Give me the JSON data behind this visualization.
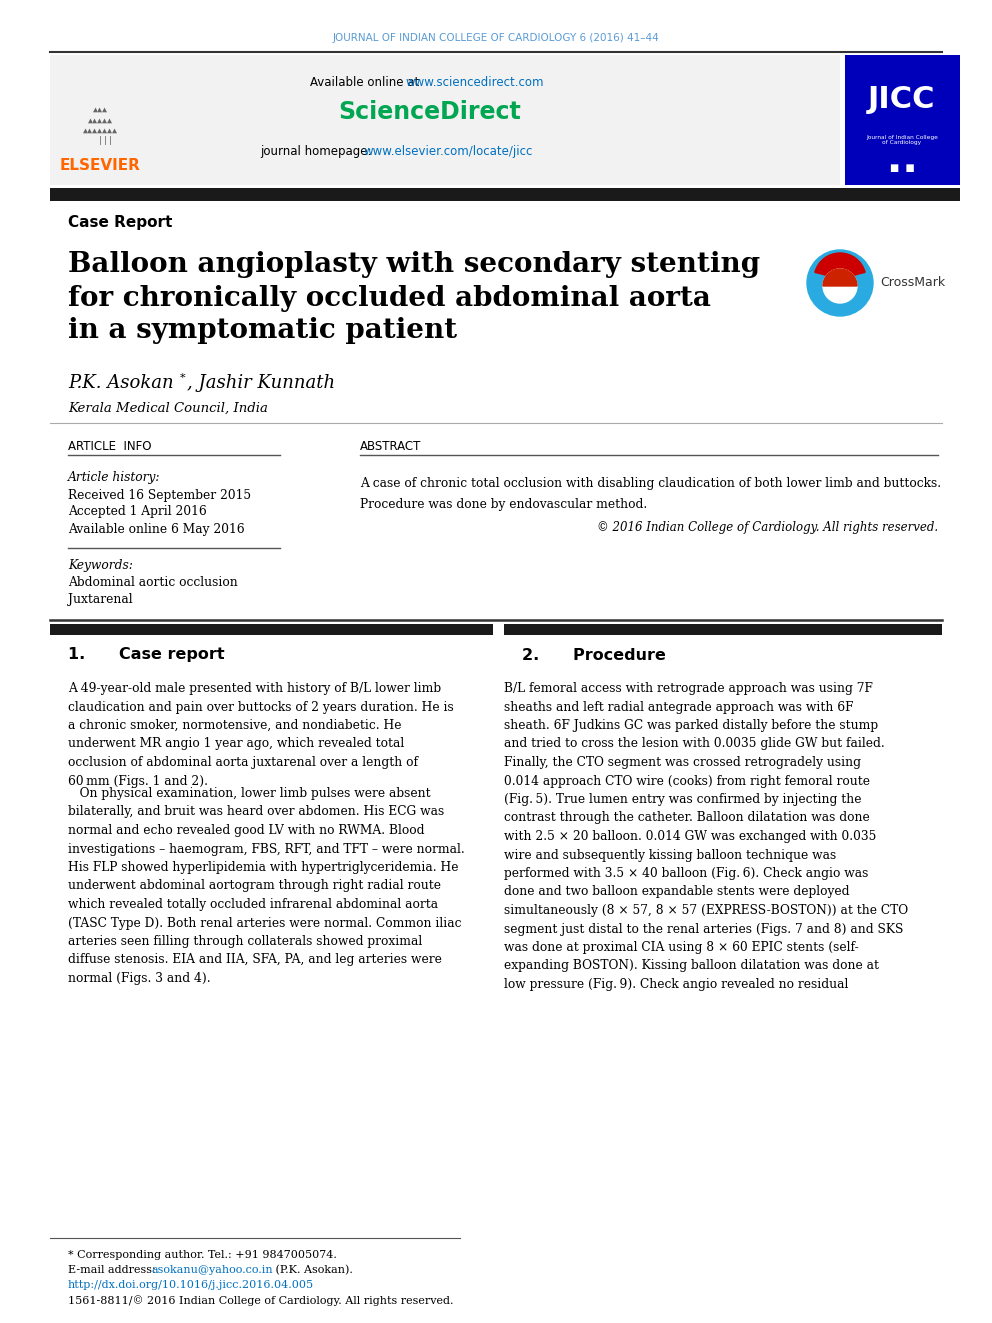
{
  "journal_header": "JOURNAL OF INDIAN COLLEGE OF CARDIOLOGY 6 (2016) 41–44",
  "journal_header_color": "#5B9BD5",
  "available_online_text": "Available online at ",
  "sciencedirect_url": "www.sciencedirect.com",
  "sciencedirect_logo": "ScienceDirect",
  "sciencedirect_logo_color": "#00A651",
  "journal_homepage_text": "journal homepage: ",
  "journal_homepage_url": "www.elsevier.com/locate/jicc",
  "url_color": "#0070C0",
  "header_bg": "#F2F2F2",
  "jicc_bg": "#0000BB",
  "jicc_text": "JICC",
  "black_bar_color": "#1A1A1A",
  "case_report_label": "Case Report",
  "title_line1": "Balloon angioplasty with secondary stenting",
  "title_line2": "for chronically occluded abdominal aorta",
  "title_line3": "in a symptomatic patient",
  "authors_part1": "P.K. Asokan",
  "authors_part2": ", Jashir Kunnath",
  "institution": "Kerala Medical Council, India",
  "article_info_header": "ARTICLE  INFO",
  "abstract_header": "ABSTRACT",
  "article_history_label": "Article history:",
  "received": "Received 16 September 2015",
  "accepted": "Accepted 1 April 2016",
  "available_online": "Available online 6 May 2016",
  "keywords_label": "Keywords:",
  "keyword1": "Abdominal aortic occlusion",
  "keyword2": "Juxtarenal",
  "abstract_text1": "A case of chronic total occlusion with disabling claudication of both lower limb and buttocks.",
  "abstract_text2": "Procedure was done by endovascular method.",
  "copyright_text": "© 2016 Indian College of Cardiology. All rights reserved.",
  "section1_num": "1.",
  "section1_title": "Case report",
  "section2_num": "2.",
  "section2_title": "Procedure",
  "footnote1": "* Corresponding author. Tel.: +91 9847005074.",
  "footnote2_pre": "E-mail address: ",
  "footnote2_url": "asokanu@yahoo.co.in",
  "footnote2_post": " (P.K. Asokan).",
  "footnote3": "http://dx.doi.org/10.1016/j.jicc.2016.04.005",
  "footnote4": "1561-8811/© 2016 Indian College of Cardiology. All rights reserved.",
  "footnote_url_color": "#0070C0",
  "elsevier_color": "#FF6600",
  "elsevier_text": "ELSEVIER"
}
